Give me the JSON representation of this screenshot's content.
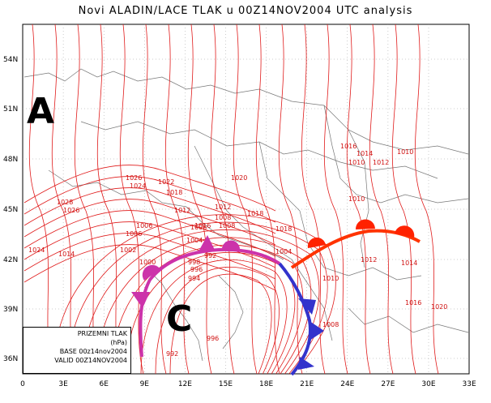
{
  "title": "Novi ALADIN/LACE TLAK u 00Z14NOV2004 UTC analysis",
  "y_ticks": [
    "54N",
    "51N",
    "48N",
    "45N",
    "42N",
    "39N",
    "36N"
  ],
  "x_ticks": [
    "0",
    "3E",
    "6E",
    "9E",
    "12E",
    "15E",
    "18E",
    "21E",
    "24E",
    "27E",
    "30E",
    "33E"
  ],
  "pressure_systems": [
    {
      "letter": "A",
      "meaning": "anticyclone"
    },
    {
      "letter": "C",
      "meaning": "cyclone"
    }
  ],
  "isobar_labels": [
    "1016",
    "1014",
    "1010",
    "1010",
    "1012",
    "1020",
    "1026",
    "1022",
    "1024",
    "1018",
    "1028",
    "1026",
    "1010",
    "1012",
    "1008",
    "1006",
    "1018",
    "1012",
    "1008",
    "1006",
    "1004",
    "1002",
    "1000",
    "998",
    "996",
    "994",
    "992",
    "1024",
    "1014",
    "1016",
    "1018",
    "1004",
    "1012",
    "1014",
    "1010",
    "1016",
    "1008",
    "1020",
    "1006",
    "996",
    "992"
  ],
  "legend": {
    "line1": "PRIZEMNI TLAK",
    "line2": "(hPa)",
    "line3": "BASE 00z14nov2004",
    "line4": "VALID 00Z14NOV2004"
  },
  "colors": {
    "isobar": "#e01a1a",
    "warm_front": "#ff3300",
    "cold_front": "#3333cc",
    "occluded_front": "#cc33aa",
    "border": "#888888"
  }
}
